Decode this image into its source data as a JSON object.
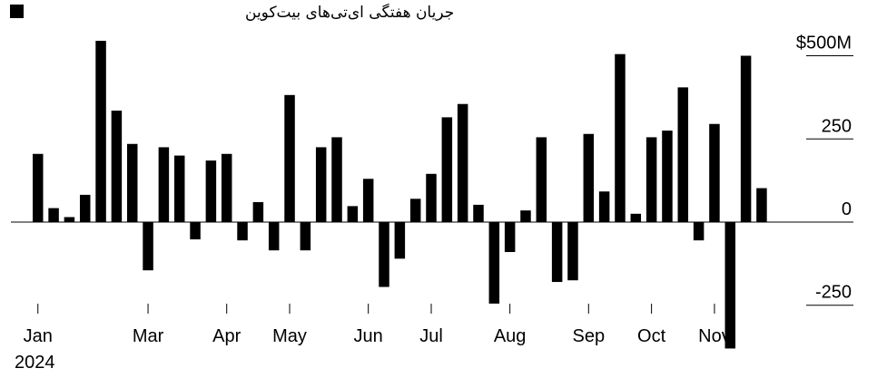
{
  "chart_data": {
    "type": "bar",
    "legend": {
      "label": "جریان هفتگی ای‌تی‌های بیت‌کوین",
      "color": "#000000",
      "placement": "top-left"
    },
    "y_axis": {
      "min": -300,
      "max": 520,
      "ticks": [
        {
          "value": 500,
          "label": "$500M"
        },
        {
          "value": 250,
          "label": "250"
        },
        {
          "value": 0,
          "label": "0"
        },
        {
          "value": -250,
          "label": "-250"
        }
      ],
      "position": "right"
    },
    "x_axis": {
      "month_labels": [
        {
          "label": "Jan",
          "week_index": 0
        },
        {
          "label": "Mar",
          "week_index": 7
        },
        {
          "label": "Apr",
          "week_index": 12
        },
        {
          "label": "May",
          "week_index": 16
        },
        {
          "label": "Jun",
          "week_index": 21
        },
        {
          "label": "Jul",
          "week_index": 25
        },
        {
          "label": "Aug",
          "week_index": 30
        },
        {
          "label": "Sep",
          "week_index": 35
        },
        {
          "label": "Oct",
          "week_index": 39
        },
        {
          "label": "Nov",
          "week_index": 43
        }
      ],
      "year_label": "2024"
    },
    "bar_color": "#000000",
    "values": [
      205,
      42,
      15,
      82,
      545,
      335,
      235,
      -145,
      225,
      200,
      -52,
      185,
      205,
      -55,
      60,
      -85,
      382,
      -85,
      225,
      255,
      48,
      130,
      -195,
      -110,
      70,
      145,
      315,
      355,
      52,
      -245,
      -90,
      35,
      255,
      -180,
      -175,
      265,
      92,
      505,
      25,
      255,
      275,
      405,
      -55,
      295,
      -380,
      500,
      102
    ]
  }
}
